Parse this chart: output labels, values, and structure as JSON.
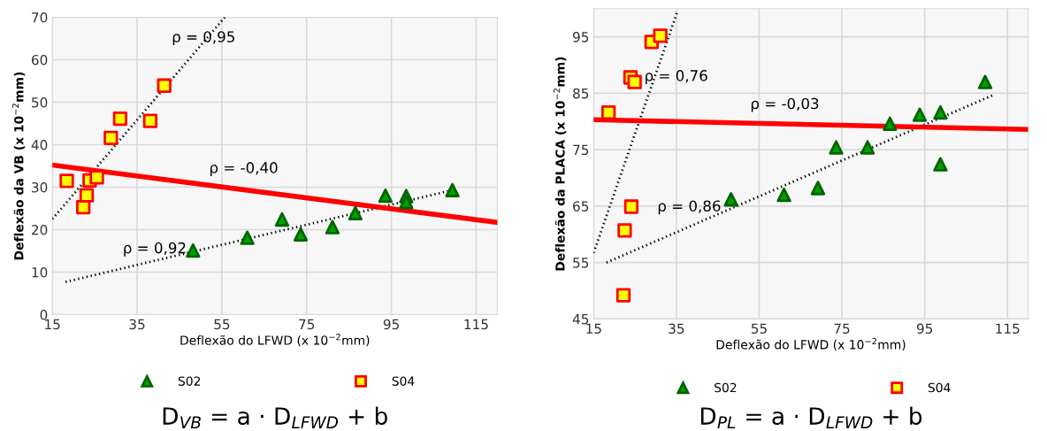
{
  "chart_data": [
    {
      "type": "scatter",
      "xlabel": "Deflexão do LFWD (x 10$^{−2}$mm)",
      "ylabel": "Deflexão da VB (x 10$^{−2}$mm)",
      "xlim": [
        15,
        120
      ],
      "ylim": [
        0,
        70
      ],
      "xticks": [
        15,
        35,
        55,
        75,
        95,
        115
      ],
      "yticks": [
        0,
        10,
        20,
        30,
        40,
        50,
        60,
        70
      ],
      "grid": true,
      "legend": "bottom",
      "series": [
        {
          "name": "S02",
          "marker": "triangle",
          "color": "#00a000",
          "x": [
            48.2,
            61.0,
            69.2,
            73.6,
            81.1,
            86.5,
            93.6,
            98.5,
            98.5,
            109.4
          ],
          "values": [
            15.1,
            18.1,
            22.4,
            18.9,
            20.6,
            23.9,
            28.0,
            27.9,
            26.5,
            29.3
          ]
        },
        {
          "name": "S04",
          "marker": "square",
          "color": "#ffff00",
          "x": [
            18.4,
            22.3,
            23.1,
            23.8,
            25.5,
            28.8,
            31.0,
            38.1,
            41.4
          ],
          "values": [
            31.5,
            25.3,
            28.1,
            31.6,
            32.3,
            41.6,
            46.1,
            45.6,
            53.9
          ]
        },
        {
          "type": "line",
          "line_style": "dotted",
          "color": "#000000",
          "x": [
            15,
            55.7
          ],
          "values": [
            22.5,
            70
          ]
        },
        {
          "type": "line",
          "line_style": "dotted",
          "color": "#000000",
          "x": [
            18.1,
            109.4
          ],
          "values": [
            7.7,
            29.3
          ]
        },
        {
          "type": "line",
          "line_style": "solid",
          "color": "#ff0000",
          "x": [
            15,
            120
          ],
          "values": [
            35.2,
            21.7
          ]
        }
      ],
      "annotations": [
        "ρ = 0,95",
        "ρ = -0,40",
        "ρ = 0,92",
        "D$_{VB}$ = a · D$_{LFWD}$ + b"
      ]
    },
    {
      "type": "scatter",
      "xlabel": "Deflexão do LFWD (x 10$^{−2}$mm)",
      "ylabel": "Deflexão da PLACA (x 10$^{−2}$mm)",
      "xlim": [
        15,
        120
      ],
      "ylim": [
        45,
        100
      ],
      "xticks": [
        15,
        35,
        55,
        75,
        95,
        115
      ],
      "yticks": [
        45,
        55,
        65,
        75,
        85,
        95
      ],
      "grid": true,
      "legend": "bottom",
      "series": [
        {
          "name": "S02",
          "marker": "triangle",
          "color": "#00a000",
          "x": [
            48.2,
            61.0,
            69.2,
            73.6,
            81.2,
            86.6,
            93.8,
            98.8,
            98.8,
            109.6
          ],
          "values": [
            66.2,
            67.0,
            68.2,
            75.4,
            75.4,
            79.6,
            81.2,
            81.6,
            72.4,
            87.0
          ]
        },
        {
          "name": "S04",
          "marker": "square",
          "color": "#ffff00",
          "x": [
            18.6,
            22.5,
            24.1,
            22.2,
            23.9,
            24.9,
            29.0,
            31.1
          ],
          "values": [
            81.6,
            60.7,
            64.9,
            49.2,
            87.8,
            87.0,
            94.1,
            95.2
          ]
        },
        {
          "type": "line",
          "line_style": "dotted",
          "color": "#000000",
          "x": [
            15,
            35.1
          ],
          "values": [
            56.7,
            99.2
          ]
        },
        {
          "type": "line",
          "line_style": "dotted",
          "color": "#000000",
          "x": [
            18.1,
            111.3
          ],
          "values": [
            55,
            84.6
          ]
        },
        {
          "type": "line",
          "line_style": "solid",
          "color": "#ff0000",
          "x": [
            15,
            120
          ],
          "values": [
            80.3,
            78.6
          ]
        }
      ],
      "annotations": [
        "ρ = 0,76",
        "ρ = -0,03",
        "ρ = 0,86",
        "D$_{PL}$ = a · D$_{LFWD}$ + b"
      ]
    }
  ]
}
